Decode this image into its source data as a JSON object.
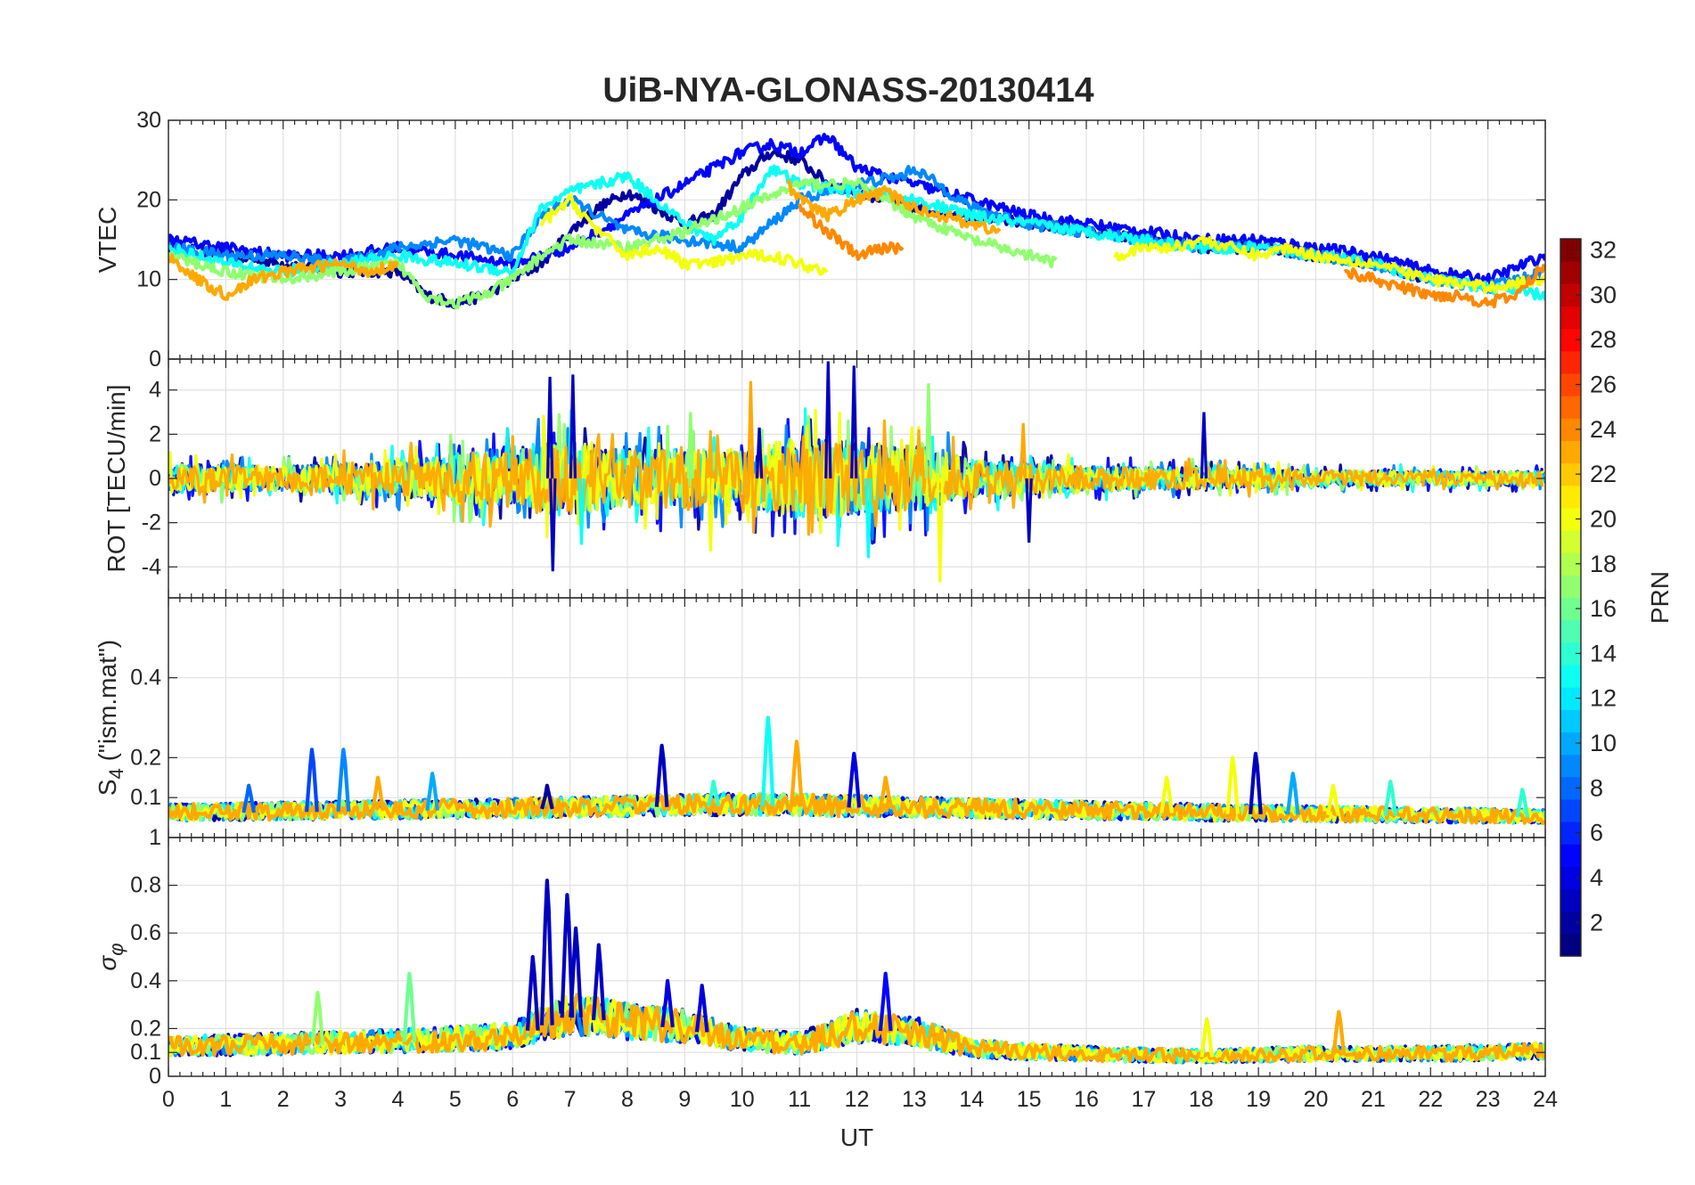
{
  "title": "UiB-NYA-GLONASS-20130414",
  "colors": {
    "axis": "#262626",
    "grid": "#e1e1e1",
    "background": "#ffffff",
    "colormap": "jet"
  },
  "chart_data": [
    {
      "type": "line",
      "panel": "vtec",
      "ylabel": "VTEC",
      "xlim": [
        0,
        24
      ],
      "ylim": [
        0,
        30
      ],
      "yticks": [
        "0",
        "10",
        "20",
        "30"
      ],
      "xtick_labels_shown": false,
      "grid": true,
      "description_series": "one line per GLONASS PRN, colour-coded by PRN",
      "series": [
        {
          "prn": 2,
          "x": [
            0,
            1,
            2,
            3,
            4,
            4.5,
            5,
            5.5,
            6,
            6.5,
            7,
            7.5,
            8,
            8.5,
            9,
            9.5,
            10,
            10.5,
            11,
            11.5,
            12,
            12.5,
            13,
            14,
            15,
            16,
            17,
            18,
            19,
            20,
            21,
            22
          ],
          "y": [
            14,
            13,
            12,
            11,
            11,
            8,
            7,
            8,
            10,
            12,
            16,
            19,
            21,
            19,
            17,
            18,
            23,
            26,
            25,
            22,
            21,
            20,
            19,
            18,
            17,
            16,
            15,
            14,
            14,
            13,
            12,
            10
          ]
        },
        {
          "prn": 5,
          "x": [
            0,
            1,
            2,
            3,
            4,
            5,
            6,
            7,
            8,
            9,
            10,
            10.5,
            11,
            11.5,
            12,
            13,
            14,
            15,
            16,
            17,
            18,
            19,
            20,
            21,
            22,
            23,
            24
          ],
          "y": [
            15,
            14,
            13,
            13,
            14,
            13,
            12,
            14,
            18,
            22,
            26,
            27,
            26,
            28,
            24,
            22,
            20,
            18,
            17,
            16,
            15,
            15,
            14,
            13,
            11,
            10,
            13
          ]
        },
        {
          "prn": 9,
          "x": [
            0,
            1,
            2,
            3,
            4,
            5,
            6,
            6.5,
            7,
            8,
            9,
            10,
            11,
            12,
            12.8,
            13,
            14,
            15,
            16,
            17,
            18,
            19,
            20,
            21,
            22,
            23,
            24
          ],
          "y": [
            14,
            13,
            13,
            12,
            14,
            15,
            13,
            18,
            20,
            16,
            15,
            14,
            20,
            22,
            23,
            24,
            19,
            17,
            16,
            15,
            14,
            14,
            13,
            12,
            10,
            9,
            11
          ]
        },
        {
          "prn": 13,
          "x": [
            0,
            1,
            2,
            3,
            4,
            5,
            6,
            6.5,
            7,
            7.5,
            8,
            9,
            9.5,
            10,
            10.5,
            11,
            12,
            13,
            14,
            15,
            16,
            17,
            18,
            19,
            20,
            21,
            22,
            23,
            24
          ],
          "y": [
            14,
            12,
            11,
            12,
            13,
            12,
            11,
            19,
            21,
            22,
            23,
            17,
            15,
            18,
            24,
            22,
            21,
            20,
            18,
            17,
            16,
            15,
            14,
            14,
            13,
            12,
            10,
            9,
            8
          ]
        },
        {
          "prn": 17,
          "x": [
            0,
            1,
            2,
            3,
            4,
            4.5,
            5,
            5.5,
            6,
            6.5,
            7,
            8,
            9,
            10,
            11,
            12,
            13,
            14,
            15,
            15.5
          ],
          "y": [
            13,
            11,
            10,
            11,
            12,
            8,
            7,
            8,
            10,
            13,
            15,
            14,
            16,
            19,
            22,
            22,
            18,
            15,
            13,
            12
          ]
        },
        {
          "prn": 20,
          "x": [
            6.5,
            7,
            7.5,
            8,
            8.5,
            9,
            9.5,
            10,
            10.5,
            11,
            11.5
          ],
          "y": [
            17,
            20,
            16,
            13,
            14,
            12,
            12,
            13,
            13,
            12,
            11
          ]
        },
        {
          "prn": 20,
          "x": [
            16.5,
            17,
            17.5,
            18,
            18.5,
            19,
            19.5,
            20,
            21,
            22,
            23,
            24
          ],
          "y": [
            13,
            14,
            14,
            15,
            14,
            13,
            14,
            13,
            12,
            10,
            9,
            10
          ]
        },
        {
          "prn": 23,
          "x": [
            0,
            0.5,
            1,
            1.5,
            2,
            3,
            3.5,
            4
          ],
          "y": [
            13,
            10,
            8,
            10,
            11,
            12,
            11,
            12
          ]
        },
        {
          "prn": 23,
          "x": [
            10.8,
            11,
            11.5,
            12,
            12.5,
            13,
            13.5,
            14,
            14.5
          ],
          "y": [
            22,
            20,
            18,
            20,
            21,
            19,
            18,
            17,
            16
          ]
        },
        {
          "prn": 24,
          "x": [
            11,
            11.5,
            12,
            12.5,
            12.8
          ],
          "y": [
            19,
            16,
            13,
            14,
            14
          ]
        },
        {
          "prn": 24,
          "x": [
            20.5,
            21,
            21.5,
            22,
            22.5,
            23,
            23.5,
            24
          ],
          "y": [
            11,
            10,
            9,
            8,
            8,
            7,
            8,
            12
          ]
        }
      ]
    },
    {
      "type": "line",
      "panel": "rot",
      "ylabel": "ROT [TECU/min]",
      "xlim": [
        0,
        24
      ],
      "ylim": [
        -5.4,
        5.4
      ],
      "yticks": [
        "-4",
        "-2",
        "0",
        "2",
        "4"
      ],
      "xtick_labels_shown": false,
      "grid": true,
      "description_series": "one noisy line per GLONASS PRN; amplitude envelope by UT",
      "envelope": {
        "x": [
          0,
          2,
          4,
          6,
          7,
          8,
          9,
          10,
          11,
          12,
          13,
          14,
          16,
          18,
          20,
          22,
          24
        ],
        "amplitude": [
          1.2,
          1.0,
          1.5,
          2.6,
          3.2,
          2.2,
          2.5,
          2.2,
          3.5,
          3.0,
          2.8,
          1.6,
          1.0,
          0.9,
          0.7,
          0.6,
          0.6
        ]
      },
      "series_prns": [
        2,
        5,
        9,
        13,
        17,
        20,
        23
      ],
      "spikes": [
        {
          "x": 6.65,
          "y": 4.6
        },
        {
          "x": 6.7,
          "y": -4.2
        },
        {
          "x": 7.05,
          "y": 4.7
        },
        {
          "x": 7.2,
          "y": -3.0
        },
        {
          "x": 9.1,
          "y": 3.0
        },
        {
          "x": 9.45,
          "y": -3.3
        },
        {
          "x": 10.15,
          "y": 4.4
        },
        {
          "x": 10.3,
          "y": 2.3
        },
        {
          "x": 11.5,
          "y": 5.3
        },
        {
          "x": 11.95,
          "y": 5.1
        },
        {
          "x": 12.2,
          "y": -3.6
        },
        {
          "x": 13.25,
          "y": 4.3
        },
        {
          "x": 13.45,
          "y": -4.7
        },
        {
          "x": 14.9,
          "y": 2.5
        },
        {
          "x": 15.0,
          "y": -2.9
        },
        {
          "x": 18.05,
          "y": 3.0
        }
      ]
    },
    {
      "type": "line",
      "panel": "s4",
      "ylabel": "S_4 (\"ism.mat\")",
      "xlim": [
        0,
        24
      ],
      "ylim": [
        0,
        0.6
      ],
      "yticks": [
        "0.1",
        "0.2",
        "0.4"
      ],
      "y_bottom_tick_label": "1",
      "xtick_labels_shown": false,
      "grid": true,
      "baseline": {
        "x": [
          0,
          6,
          10,
          14,
          18,
          24
        ],
        "y": [
          0.06,
          0.07,
          0.08,
          0.07,
          0.06,
          0.05
        ]
      },
      "series_prns": [
        2,
        5,
        9,
        13,
        17,
        20,
        23
      ],
      "peaks": [
        {
          "x": 2.5,
          "y": 0.22,
          "prn": 7
        },
        {
          "x": 3.05,
          "y": 0.22,
          "prn": 9
        },
        {
          "x": 1.4,
          "y": 0.13,
          "prn": 8
        },
        {
          "x": 3.65,
          "y": 0.15,
          "prn": 23
        },
        {
          "x": 4.6,
          "y": 0.16,
          "prn": 10
        },
        {
          "x": 6.6,
          "y": 0.13,
          "prn": 2
        },
        {
          "x": 8.6,
          "y": 0.23,
          "prn": 3
        },
        {
          "x": 9.5,
          "y": 0.14,
          "prn": 14
        },
        {
          "x": 10.45,
          "y": 0.3,
          "prn": 13
        },
        {
          "x": 10.95,
          "y": 0.24,
          "prn": 23
        },
        {
          "x": 11.95,
          "y": 0.21,
          "prn": 4
        },
        {
          "x": 12.5,
          "y": 0.15,
          "prn": 23
        },
        {
          "x": 17.4,
          "y": 0.15,
          "prn": 20
        },
        {
          "x": 18.55,
          "y": 0.2,
          "prn": 20
        },
        {
          "x": 18.95,
          "y": 0.21,
          "prn": 3
        },
        {
          "x": 19.6,
          "y": 0.16,
          "prn": 10
        },
        {
          "x": 20.3,
          "y": 0.13,
          "prn": 20
        },
        {
          "x": 21.3,
          "y": 0.14,
          "prn": 14
        },
        {
          "x": 23.6,
          "y": 0.12,
          "prn": 14
        }
      ]
    },
    {
      "type": "line",
      "panel": "sigma_phi",
      "ylabel": "σ_φ",
      "xlabel": "UT",
      "xlim": [
        0,
        24
      ],
      "ylim": [
        0,
        1.0
      ],
      "xticks": [
        "0",
        "1",
        "2",
        "3",
        "4",
        "5",
        "6",
        "7",
        "8",
        "9",
        "10",
        "11",
        "12",
        "13",
        "14",
        "15",
        "16",
        "17",
        "18",
        "19",
        "20",
        "21",
        "22",
        "23",
        "24"
      ],
      "yticks": [
        "0",
        "0.1",
        "0.2",
        "0.4",
        "0.6",
        "0.8"
      ],
      "grid": true,
      "baseline": {
        "x": [
          0,
          2,
          4,
          6,
          7,
          8,
          9,
          10,
          11,
          12,
          13,
          14,
          16,
          18,
          20,
          22,
          24
        ],
        "y": [
          0.12,
          0.13,
          0.14,
          0.16,
          0.25,
          0.22,
          0.2,
          0.15,
          0.13,
          0.2,
          0.18,
          0.11,
          0.09,
          0.08,
          0.09,
          0.09,
          0.1
        ]
      },
      "series_prns": [
        2,
        5,
        9,
        13,
        17,
        20,
        23
      ],
      "peaks": [
        {
          "x": 6.6,
          "y": 0.82,
          "prn": 3
        },
        {
          "x": 6.95,
          "y": 0.76,
          "prn": 3
        },
        {
          "x": 7.1,
          "y": 0.62,
          "prn": 3
        },
        {
          "x": 6.35,
          "y": 0.5,
          "prn": 3
        },
        {
          "x": 7.5,
          "y": 0.55,
          "prn": 3
        },
        {
          "x": 8.7,
          "y": 0.4,
          "prn": 4
        },
        {
          "x": 9.3,
          "y": 0.38,
          "prn": 4
        },
        {
          "x": 12.5,
          "y": 0.43,
          "prn": 5
        },
        {
          "x": 4.2,
          "y": 0.43,
          "prn": 16
        },
        {
          "x": 2.6,
          "y": 0.35,
          "prn": 17
        },
        {
          "x": 18.1,
          "y": 0.24,
          "prn": 20
        },
        {
          "x": 20.4,
          "y": 0.27,
          "prn": 23
        }
      ]
    }
  ],
  "colorbar": {
    "label": "PRN",
    "range": [
      1,
      32
    ],
    "ticks": [
      "2",
      "4",
      "6",
      "8",
      "10",
      "12",
      "14",
      "16",
      "18",
      "20",
      "22",
      "24",
      "26",
      "28",
      "30",
      "32"
    ]
  }
}
